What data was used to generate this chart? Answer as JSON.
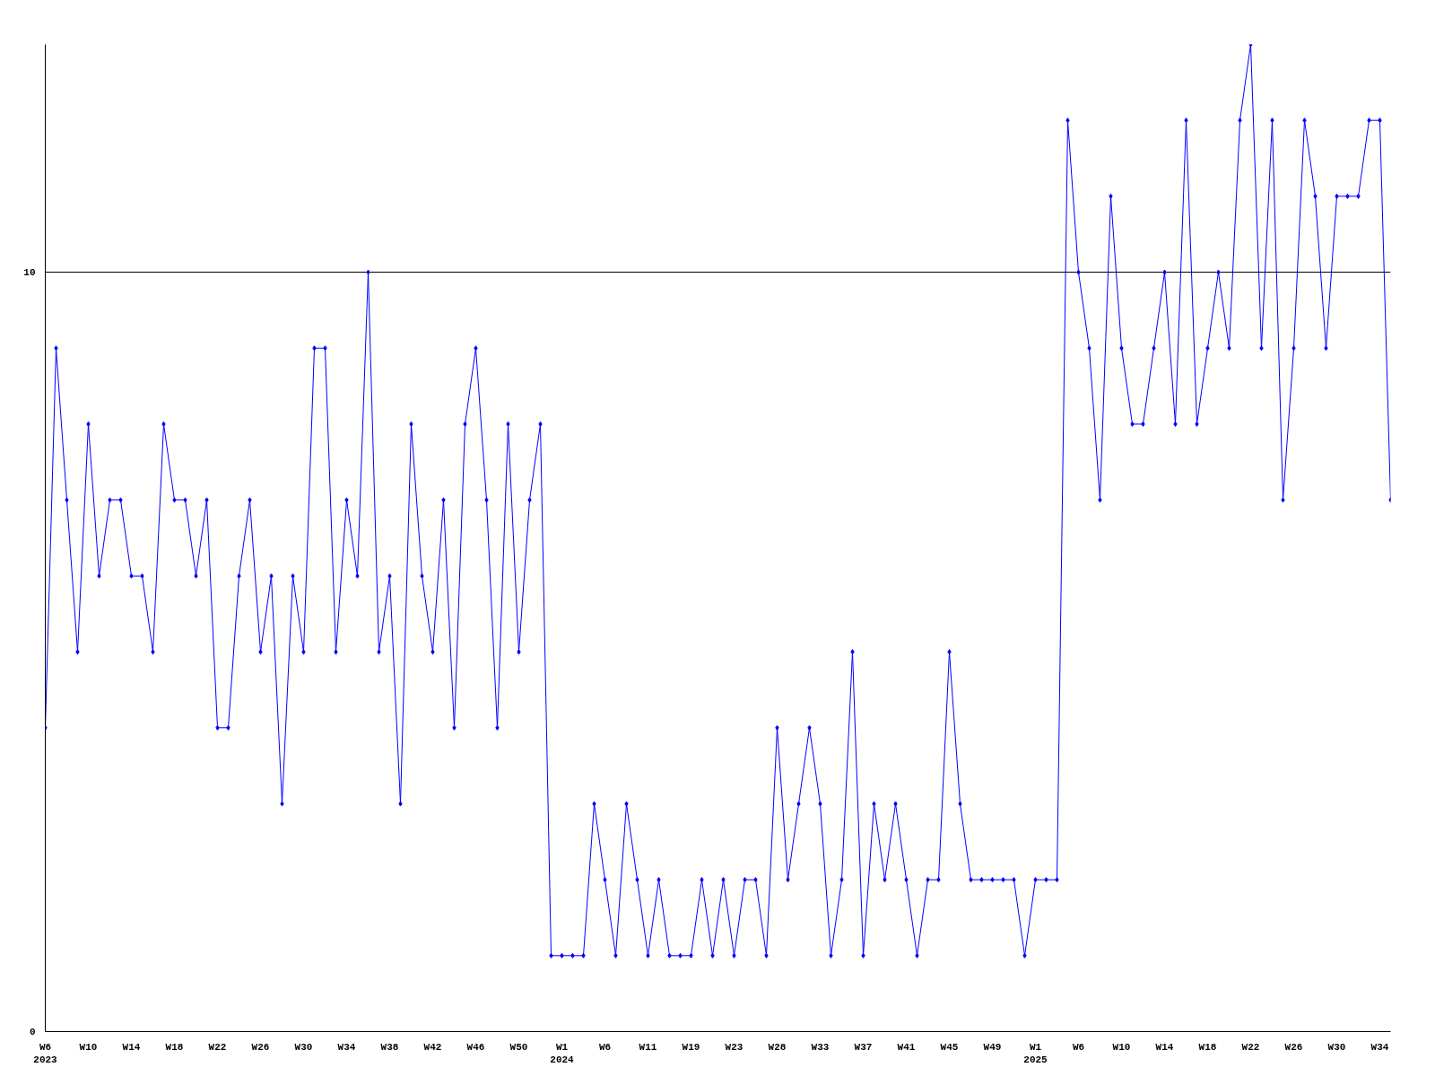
{
  "chart_data": {
    "type": "line",
    "categories": [
      "W6\n2023",
      null,
      null,
      null,
      "W10",
      null,
      null,
      null,
      "W14",
      null,
      null,
      null,
      "W18",
      null,
      null,
      null,
      "W22",
      null,
      null,
      null,
      "W26",
      null,
      null,
      null,
      "W30",
      null,
      null,
      null,
      "W34",
      null,
      null,
      null,
      "W38",
      null,
      null,
      null,
      "W42",
      null,
      null,
      null,
      "W46",
      null,
      null,
      null,
      "W50",
      null,
      null,
      null,
      "W1\n2024",
      null,
      null,
      null,
      "W6",
      null,
      null,
      null,
      "W11",
      null,
      null,
      null,
      "W19",
      null,
      null,
      null,
      "W23",
      null,
      null,
      null,
      "W28",
      null,
      null,
      null,
      "W33",
      null,
      null,
      null,
      "W37",
      null,
      null,
      null,
      "W41",
      null,
      null,
      null,
      "W45",
      null,
      null,
      null,
      "W49",
      null,
      null,
      null,
      "W1\n2025",
      null,
      null,
      null,
      "W6",
      null,
      null,
      null,
      "W10",
      null,
      null,
      null,
      "W14",
      null,
      null,
      null,
      "W18",
      null,
      null,
      null,
      "W22",
      null,
      null,
      null,
      "W26",
      null,
      null,
      null,
      "W30",
      null,
      null,
      null,
      "W34",
      null
    ],
    "series": [
      {
        "color": "#0000ff",
        "values": [
          4,
          9,
          7,
          5,
          8,
          6,
          7,
          7,
          6,
          6,
          5,
          8,
          7,
          7,
          6,
          7,
          4,
          4,
          6,
          7,
          5,
          6,
          3,
          6,
          5,
          9,
          9,
          5,
          7,
          6,
          10,
          5,
          6,
          3,
          8,
          6,
          5,
          7,
          4,
          8,
          9,
          7,
          4,
          8,
          5,
          7,
          8,
          1,
          1,
          1,
          1,
          3,
          2,
          1,
          3,
          2,
          1,
          2,
          1,
          1,
          1,
          2,
          1,
          2,
          1,
          2,
          2,
          1,
          4,
          2,
          3,
          4,
          3,
          1,
          2,
          5,
          1,
          3,
          2,
          3,
          2,
          1,
          2,
          2,
          5,
          3,
          2,
          2,
          2,
          2,
          2,
          1,
          2,
          2,
          2,
          12,
          10,
          9,
          7,
          11,
          9,
          8,
          8,
          9,
          10,
          8,
          12,
          8,
          9,
          10,
          9,
          12,
          13,
          9,
          12,
          7,
          9,
          12,
          11,
          9,
          11,
          11,
          11,
          12,
          12,
          7
        ]
      }
    ],
    "ylim": [
      0,
      13
    ],
    "yticks": [
      0,
      10
    ],
    "grid": "y",
    "marker": "diamond",
    "line_style": "solid"
  }
}
